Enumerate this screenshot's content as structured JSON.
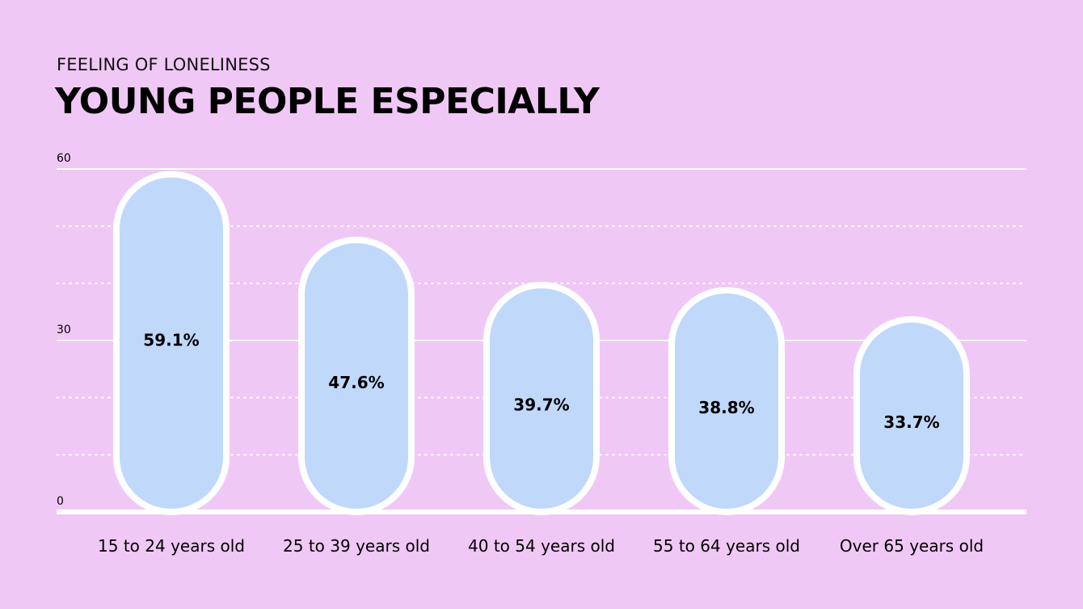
{
  "header": {
    "subtitle": "FEELING OF LONELINESS",
    "title": "YOUNG PEOPLE ESPECIALLY"
  },
  "colors": {
    "background": "#f0c8f5",
    "bar_fill": "#c0d8fa",
    "bar_stroke": "#ffffff",
    "gridline": "#ffffff"
  },
  "chart_data": {
    "type": "bar",
    "title": "YOUNG PEOPLE ESPECIALLY",
    "subtitle": "FEELING OF LONELINESS",
    "categories": [
      "15 to 24 years old",
      "25 to 39 years old",
      "40 to 54 years old",
      "55 to 64 years old",
      "Over 65 years old"
    ],
    "values": [
      59.1,
      47.6,
      39.7,
      38.8,
      33.7
    ],
    "value_labels": [
      "59.1%",
      "47.6%",
      "39.7%",
      "38.8%",
      "33.7%"
    ],
    "ylim": [
      0,
      60
    ],
    "yticks": [
      0,
      30,
      60
    ],
    "ytick_labels": [
      "0",
      "30",
      "60"
    ],
    "minor_gridlines": [
      10,
      20,
      40,
      50
    ],
    "grid": true,
    "xlabel": "",
    "ylabel": ""
  }
}
